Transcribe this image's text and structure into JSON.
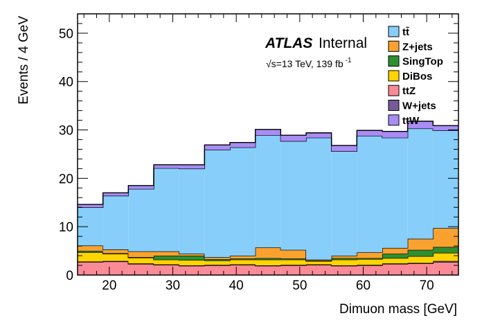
{
  "chart_data": {
    "type": "stacked-histogram",
    "xlabel": "Dimuon mass [GeV]",
    "ylabel": "Events / 4 GeV",
    "xlim": [
      15,
      75
    ],
    "ylim": [
      0,
      54
    ],
    "x_ticks": [
      20,
      30,
      40,
      50,
      60,
      70
    ],
    "y_ticks": [
      0,
      10,
      20,
      30,
      40,
      50
    ],
    "bin_edges": [
      15,
      19,
      23,
      27,
      31,
      35,
      39,
      43,
      47,
      51,
      55,
      59,
      63,
      67,
      71,
      75
    ],
    "atlas_label": "ATLAS",
    "atlas_sublabel": "Internal",
    "energy_label": "√s=13 TeV, 139 fb",
    "energy_exponent": "-1",
    "legend_position": "top-right",
    "series": [
      {
        "name": "ttZ",
        "color": "#fa8a96",
        "values": [
          2.7,
          2.8,
          2.3,
          2.1,
          1.9,
          2.0,
          2.1,
          1.9,
          2.0,
          2.1,
          1.9,
          2.0,
          2.3,
          2.4,
          2.7
        ]
      },
      {
        "name": "W+jets",
        "color": "#775a9b",
        "values": [
          0.1,
          0.1,
          0.1,
          0.1,
          0.1,
          0.1,
          0.1,
          0.1,
          0.1,
          0.1,
          0.1,
          0.1,
          0.1,
          0.1,
          0.2
        ]
      },
      {
        "name": "DiBos",
        "color": "#ffd400",
        "values": [
          1.9,
          1.5,
          1.2,
          1.0,
          1.1,
          0.9,
          1.0,
          1.2,
          1.1,
          0.7,
          1.2,
          1.2,
          1.1,
          1.4,
          1.7
        ]
      },
      {
        "name": "SingTop",
        "color": "#2f8f2f",
        "values": [
          0.3,
          0.1,
          0.1,
          0.8,
          0.9,
          0.3,
          0.2,
          0.3,
          0.2,
          0.1,
          0.3,
          0.2,
          0.9,
          1.3,
          1.2
        ]
      },
      {
        "name": "Z+jets",
        "color": "#faa22f",
        "values": [
          1.1,
          0.8,
          1.2,
          0.9,
          0.4,
          0.4,
          0.6,
          2.2,
          1.8,
          0.2,
          0.5,
          1.2,
          1.2,
          2.3,
          3.9
        ]
      },
      {
        "name": "tt̄",
        "color": "#87cefa",
        "values": [
          7.9,
          11.1,
          12.9,
          17.2,
          17.6,
          22.2,
          22.4,
          23.2,
          22.5,
          25.2,
          21.6,
          24.1,
          22.8,
          22.8,
          20.2
        ]
      },
      {
        "name": "ttW",
        "color": "#a98cf5",
        "values": [
          0.6,
          0.6,
          0.7,
          0.7,
          0.8,
          1.0,
          1.0,
          1.2,
          1.2,
          1.0,
          1.2,
          1.1,
          1.3,
          1.5,
          1.0
        ]
      }
    ],
    "legend_order": [
      "tt̄",
      "Z+jets",
      "SingTop",
      "DiBos",
      "ttZ",
      "W+jets",
      "ttW"
    ]
  }
}
